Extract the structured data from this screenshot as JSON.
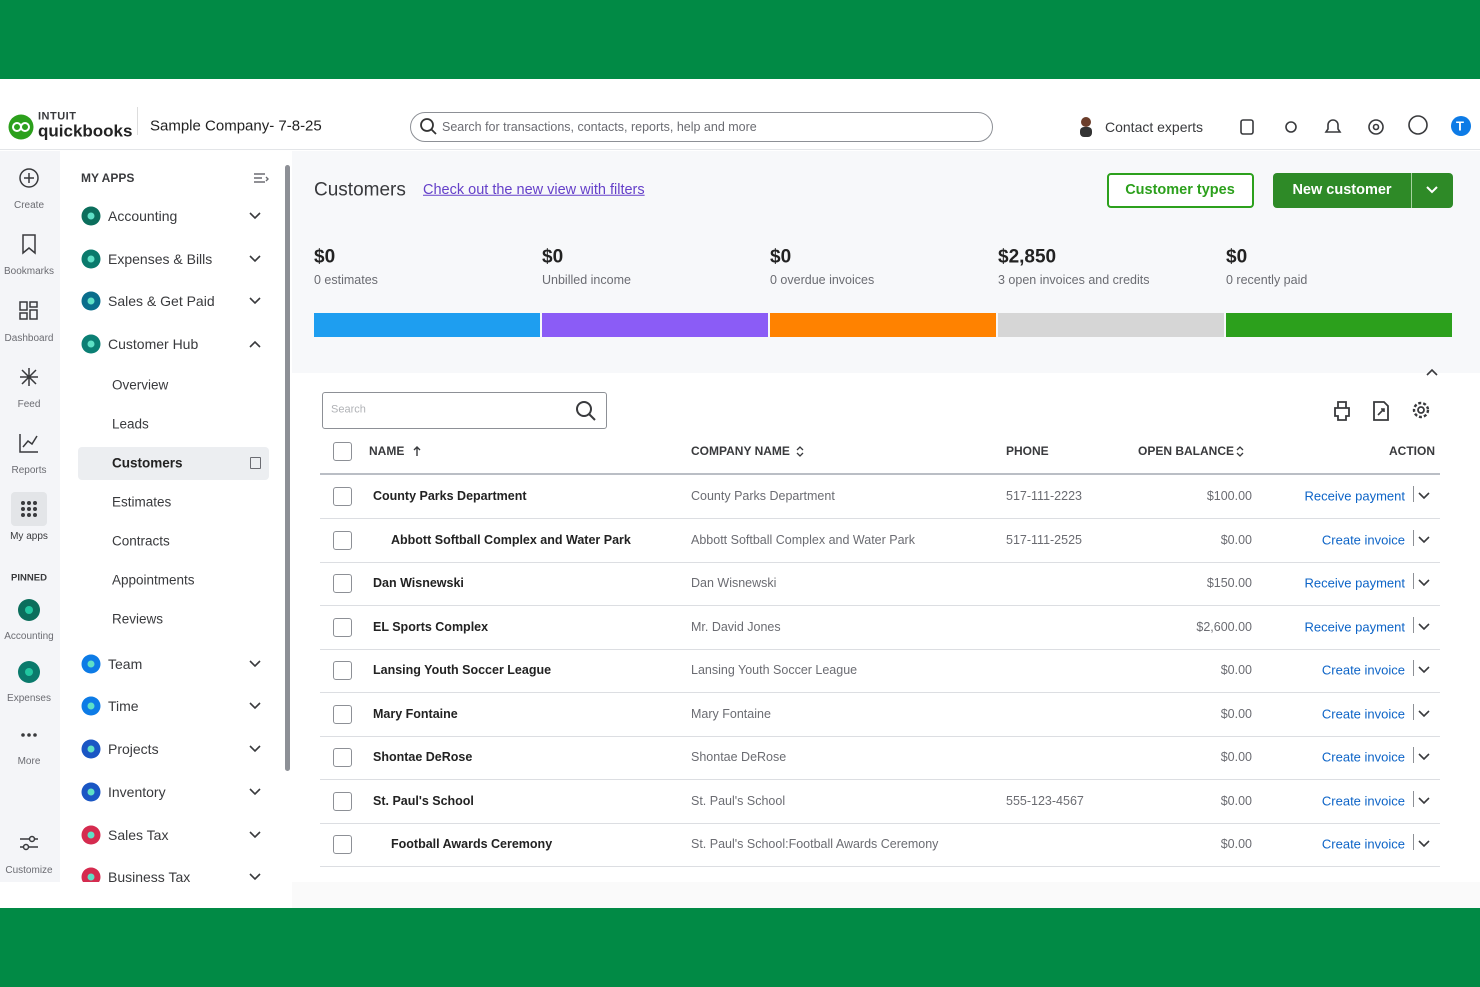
{
  "header": {
    "brand_top": "INTUIT",
    "brand": "quickbooks",
    "company": "Sample Company- 7-8-25",
    "search_placeholder": "Search for transactions, contacts, reports, help and more",
    "contact": "Contact experts",
    "avatar": "T"
  },
  "rail": {
    "items": [
      "Create",
      "Bookmarks",
      "Dashboard",
      "Feed",
      "Reports",
      "My apps"
    ],
    "pinned_title": "PINNED",
    "pinned": [
      "Accounting",
      "Expenses",
      "More"
    ],
    "customize": "Customize"
  },
  "sidebar": {
    "title": "MY APPS",
    "apps": [
      "Accounting",
      "Expenses & Bills",
      "Sales & Get Paid",
      "Customer Hub"
    ],
    "sub_items": [
      "Overview",
      "Leads",
      "Customers",
      "Estimates",
      "Contracts",
      "Appointments",
      "Reviews"
    ],
    "more_apps": [
      "Team",
      "Time",
      "Projects",
      "Inventory",
      "Sales Tax",
      "Business Tax"
    ]
  },
  "page": {
    "title": "Customers",
    "link": "Check out the new view with filters",
    "button_secondary": "Customer types",
    "button_primary": "New customer"
  },
  "summary": [
    {
      "amount": "$0",
      "label": "0 estimates",
      "color": "#1e9ef0"
    },
    {
      "amount": "$0",
      "label": "Unbilled income",
      "color": "#8b5cf6"
    },
    {
      "amount": "$0",
      "label": "0 overdue invoices",
      "color": "#ff8200"
    },
    {
      "amount": "$2,850",
      "label": "3 open invoices and credits",
      "color": "#d6d6d6"
    },
    {
      "amount": "$0",
      "label": "0 recently paid",
      "color": "#2ca01c"
    }
  ],
  "table": {
    "search_placeholder": "Search",
    "columns": [
      "NAME",
      "COMPANY NAME",
      "PHONE",
      "OPEN BALANCE",
      "ACTION"
    ],
    "rows": [
      {
        "name": "County Parks Department",
        "company": "County Parks Department",
        "phone": "517-111-2223",
        "balance": "$100.00",
        "action": "Receive payment"
      },
      {
        "name": "Abbott Softball Complex and Water Park",
        "company": "Abbott Softball Complex and Water Park",
        "phone": "517-111-2525",
        "balance": "$0.00",
        "action": "Create invoice"
      },
      {
        "name": "Dan Wisnewski",
        "company": "Dan Wisnewski",
        "balance": "$150.00",
        "action": "Receive payment"
      },
      {
        "name": "EL Sports Complex",
        "company": "Mr. David Jones",
        "balance": "$2,600.00",
        "action": "Receive payment"
      },
      {
        "name": "Lansing Youth Soccer League",
        "company": "Lansing Youth Soccer League",
        "balance": "$0.00",
        "action": "Create invoice"
      },
      {
        "name": "Mary Fontaine",
        "company": "Mary Fontaine",
        "balance": "$0.00",
        "action": "Create invoice"
      },
      {
        "name": "Shontae DeRose",
        "company": "Shontae DeRose",
        "balance": "$0.00",
        "action": "Create invoice"
      },
      {
        "name": "St. Paul's School",
        "company": "St. Paul's School",
        "phone": "555-123-4567",
        "balance": "$0.00",
        "action": "Create invoice"
      },
      {
        "name": "Football Awards Ceremony",
        "company": "St. Paul's School:Football Awards Ceremony",
        "balance": "$0.00",
        "action": "Create invoice"
      }
    ]
  }
}
